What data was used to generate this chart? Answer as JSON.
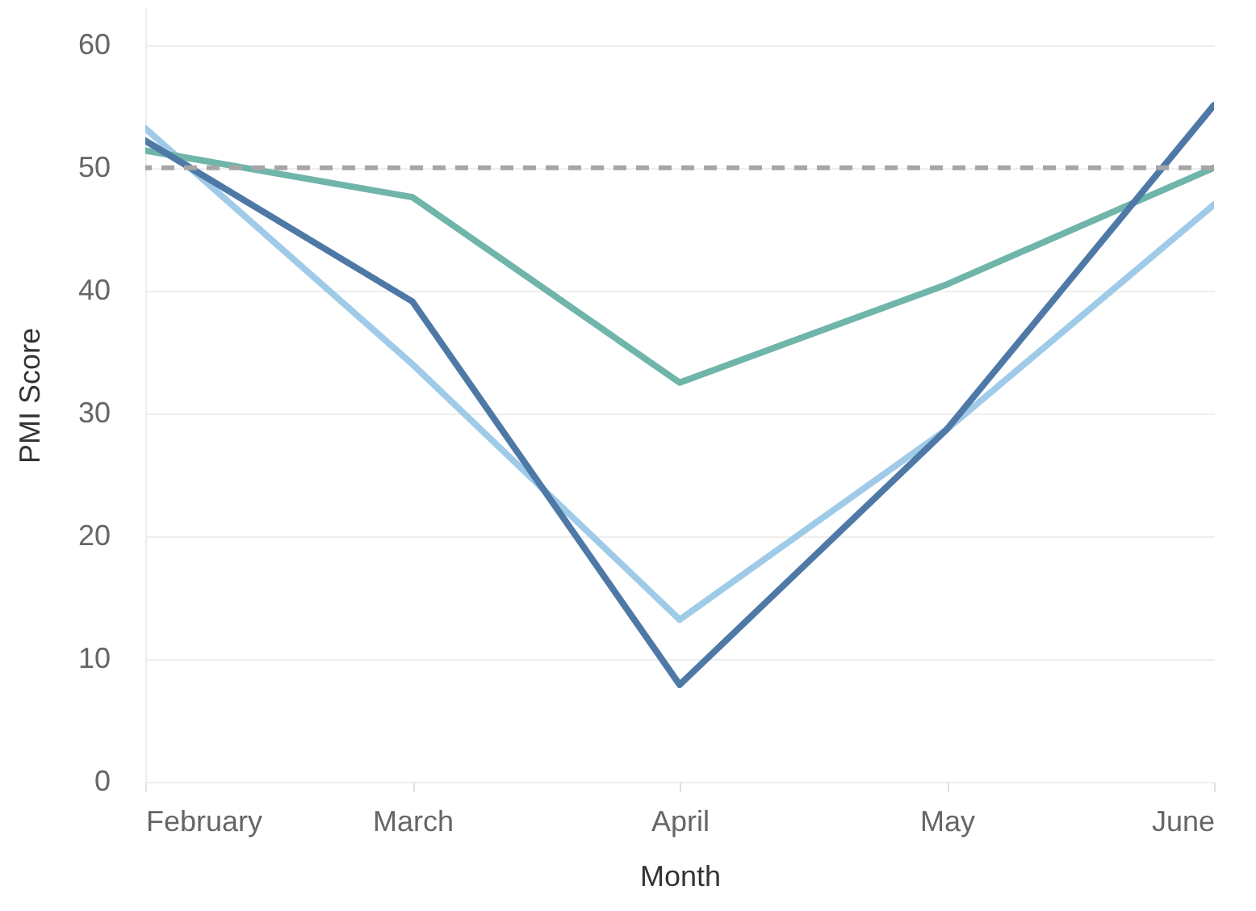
{
  "chart_data": {
    "type": "line",
    "xlabel": "Month",
    "ylabel": "PMI Score",
    "categories": [
      "February",
      "March",
      "April",
      "May",
      "June"
    ],
    "series": [
      {
        "color": "#a0cbe8",
        "values": [
          53.2,
          34,
          13.2,
          28.7,
          47
        ]
      },
      {
        "color": "#6fb5a9",
        "values": [
          51.4,
          47.6,
          32.5,
          40.5,
          50
        ]
      },
      {
        "color": "#4e79a7",
        "values": [
          52.2,
          39.1,
          7.9,
          28.7,
          55.1
        ]
      }
    ],
    "ylim": [
      0,
      63
    ],
    "yticks": [
      0,
      10,
      20,
      30,
      40,
      50,
      60
    ],
    "grid": "y",
    "line_style": "solid",
    "marker": "none",
    "ref_lines": [
      {
        "axis": "y",
        "value": 50,
        "color": "#a6a6a6",
        "line_style": "dashed"
      }
    ]
  }
}
